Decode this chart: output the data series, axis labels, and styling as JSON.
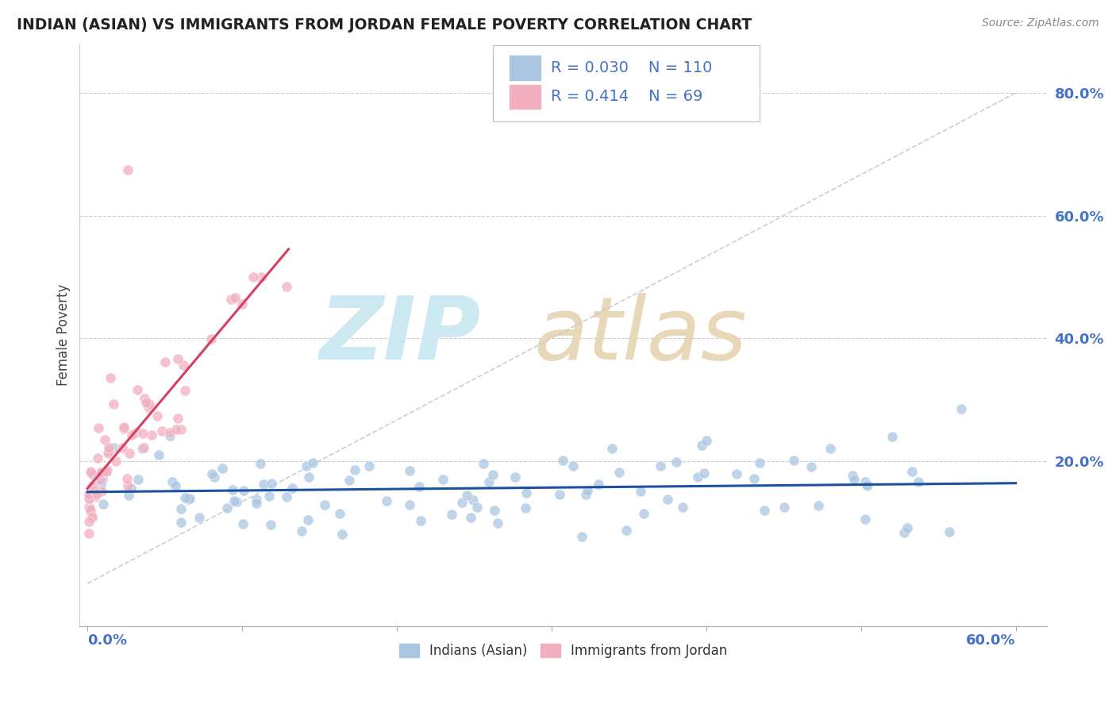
{
  "title": "INDIAN (ASIAN) VS IMMIGRANTS FROM JORDAN FEMALE POVERTY CORRELATION CHART",
  "source": "Source: ZipAtlas.com",
  "ylabel": "Female Poverty",
  "ytick_vals": [
    0.2,
    0.4,
    0.6,
    0.8
  ],
  "ytick_labels": [
    "20.0%",
    "40.0%",
    "60.0%",
    "80.0%"
  ],
  "xlim": [
    -0.005,
    0.62
  ],
  "ylim": [
    -0.07,
    0.88
  ],
  "legend_r1": "R = 0.030",
  "legend_n1": "N = 110",
  "legend_r2": "R = 0.414",
  "legend_n2": "N = 69",
  "blue_color": "#aac5e2",
  "pink_color": "#f2afc0",
  "blue_line_color": "#1a52a0",
  "pink_line_color": "#d44060",
  "diag_line_color": "#c8c8c8",
  "grid_color": "#cccccc",
  "legend_label1": "Indians (Asian)",
  "legend_label2": "Immigrants from Jordan",
  "title_color": "#222222",
  "source_color": "#888888",
  "axis_label_color": "#4472c4",
  "legend_text_color": "#4472c4",
  "watermark_zip_color": "#cce8f0",
  "watermark_atlas_color": "#e8d8b8"
}
